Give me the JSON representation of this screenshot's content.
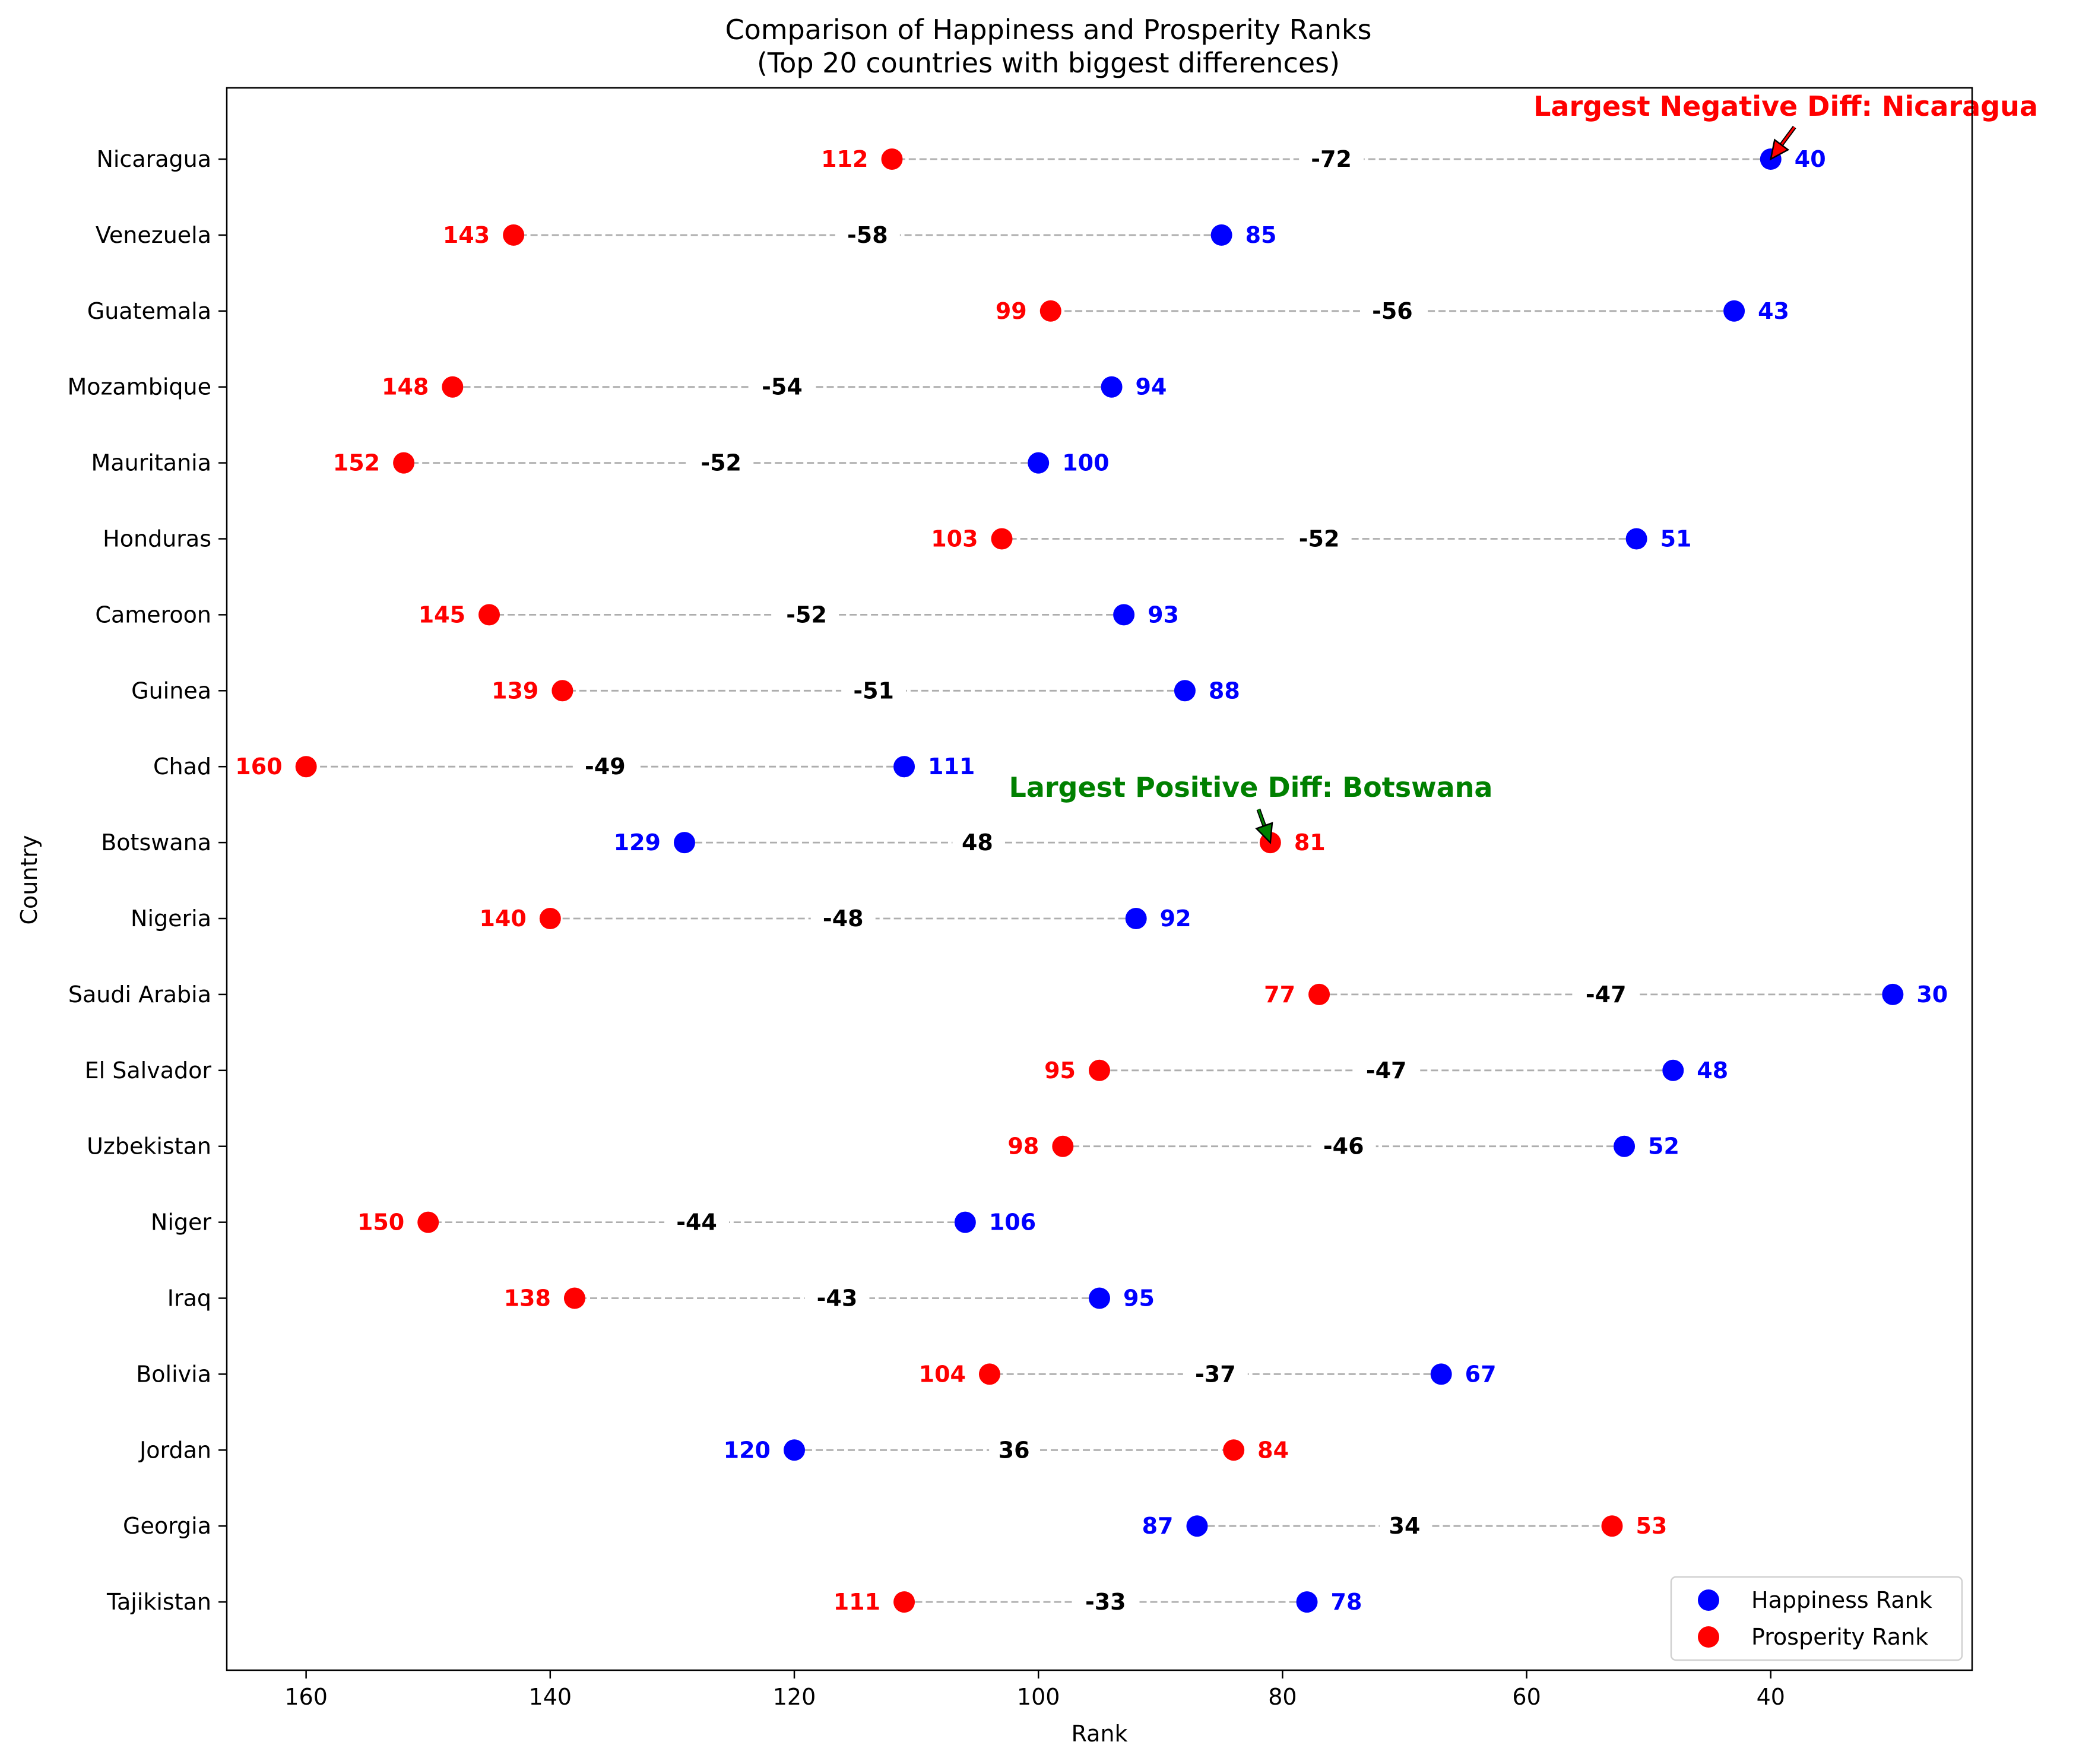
{
  "chart_data": {
    "type": "scatter",
    "title": "Comparison of Happiness and Prosperity Ranks",
    "subtitle": "(Top 20 countries with biggest differences)",
    "xlabel": "Rank",
    "ylabel": "Country",
    "xlim": [
      166.5,
      23.5
    ],
    "x_inverted": true,
    "xticks": [
      160,
      140,
      120,
      100,
      80,
      60,
      40
    ],
    "grid": false,
    "legend_position": "bottom-right",
    "categories": [
      "Nicaragua",
      "Venezuela",
      "Guatemala",
      "Mozambique",
      "Mauritania",
      "Honduras",
      "Cameroon",
      "Guinea",
      "Chad",
      "Botswana",
      "Nigeria",
      "Saudi Arabia",
      "El Salvador",
      "Uzbekistan",
      "Niger",
      "Iraq",
      "Bolivia",
      "Jordan",
      "Georgia",
      "Tajikistan"
    ],
    "series": [
      {
        "name": "Happiness Rank",
        "color": "#0000ff",
        "values": [
          40,
          85,
          43,
          94,
          100,
          51,
          93,
          88,
          111,
          129,
          92,
          30,
          48,
          52,
          106,
          95,
          67,
          120,
          87,
          78
        ]
      },
      {
        "name": "Prosperity Rank",
        "color": "#ff0000",
        "values": [
          112,
          143,
          99,
          148,
          152,
          103,
          145,
          139,
          160,
          81,
          140,
          77,
          95,
          98,
          150,
          138,
          104,
          84,
          53,
          111
        ]
      }
    ],
    "differences": [
      -72,
      -58,
      -56,
      -54,
      -52,
      -52,
      -52,
      -51,
      -49,
      48,
      -48,
      -47,
      -47,
      -46,
      -44,
      -43,
      -37,
      36,
      34,
      -33
    ],
    "annotations": [
      {
        "text": "Largest Negative Diff: Nicaragua",
        "country": "Nicaragua",
        "series": "Happiness Rank",
        "color": "#ff0000"
      },
      {
        "text": "Largest Positive Diff: Botswana",
        "country": "Botswana",
        "series": "Prosperity Rank",
        "color": "#008000"
      }
    ]
  }
}
